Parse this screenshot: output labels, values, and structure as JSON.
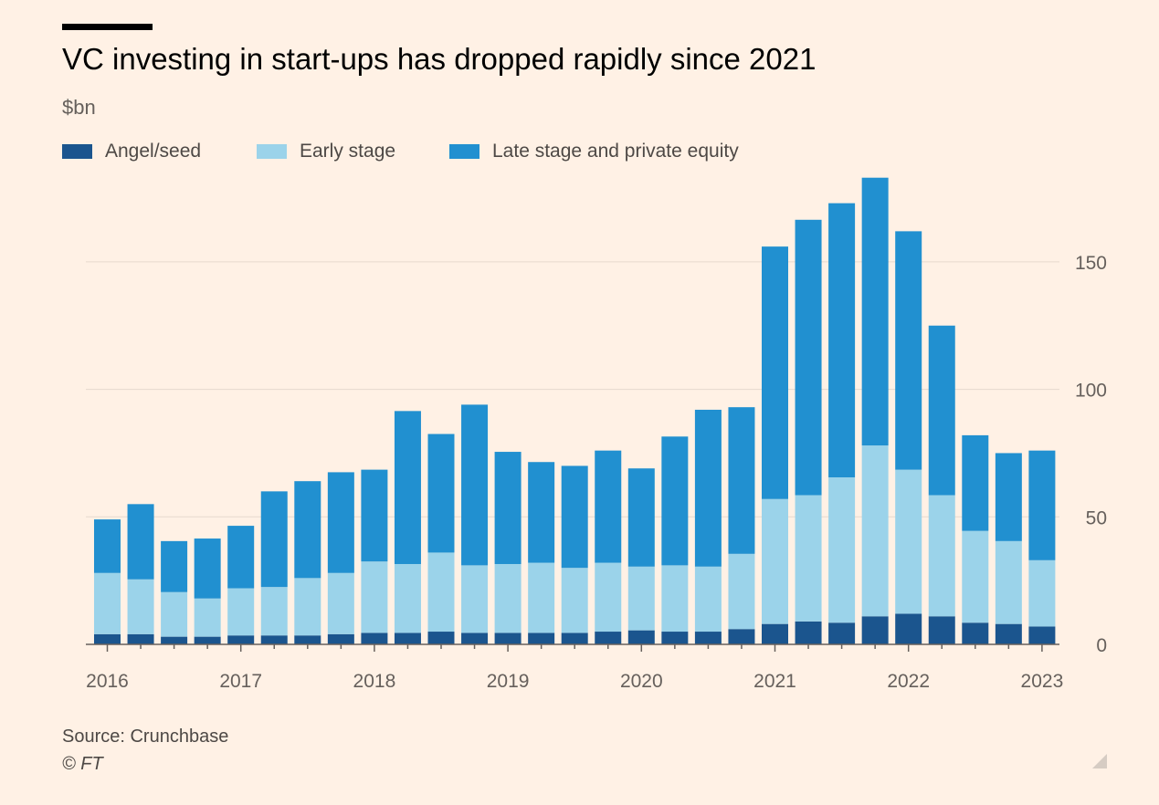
{
  "title": "VC investing in start-ups has dropped rapidly since 2021",
  "unit_label": "$bn",
  "source": "Source: Crunchbase",
  "credit": "© FT",
  "colors": {
    "background": "#fff1e5",
    "angel_seed": "#1b558e",
    "early_stage": "#9bd3ea",
    "late_stage": "#2190d0",
    "gridline": "#e6d9ce",
    "axis": "#66605c"
  },
  "chart_data": {
    "type": "bar",
    "stacked": true,
    "title": "VC investing in start-ups has dropped rapidly since 2021",
    "ylabel": "$bn",
    "ylim": [
      0,
      185
    ],
    "yticks": [
      0,
      50,
      100,
      150
    ],
    "y_axis_position": "right",
    "grid": true,
    "legend_position": "top-left",
    "categories": [
      "2016 Q1",
      "2016 Q2",
      "2016 Q3",
      "2016 Q4",
      "2017 Q1",
      "2017 Q2",
      "2017 Q3",
      "2017 Q4",
      "2018 Q1",
      "2018 Q2",
      "2018 Q3",
      "2018 Q4",
      "2019 Q1",
      "2019 Q2",
      "2019 Q3",
      "2019 Q4",
      "2020 Q1",
      "2020 Q2",
      "2020 Q3",
      "2020 Q4",
      "2021 Q1",
      "2021 Q2",
      "2021 Q3",
      "2021 Q4",
      "2022 Q1",
      "2022 Q2",
      "2022 Q3",
      "2022 Q4",
      "2023 Q1"
    ],
    "xtick_labels": [
      "2016",
      "2017",
      "2018",
      "2019",
      "2020",
      "2021",
      "2022",
      "2023"
    ],
    "series": [
      {
        "name": "Angel/seed",
        "values": [
          4,
          4,
          3,
          3,
          3.5,
          3.5,
          3.5,
          4,
          4.5,
          4.5,
          5,
          4.5,
          4.5,
          4.5,
          4.5,
          5,
          5.5,
          5,
          5,
          6,
          8,
          9,
          8.5,
          11,
          12,
          11,
          8.5,
          8,
          7
        ]
      },
      {
        "name": "Early stage",
        "values": [
          24,
          21.5,
          17.5,
          15,
          18.5,
          19,
          22.5,
          24,
          28,
          27,
          31,
          26.5,
          27,
          27.5,
          25.5,
          27,
          25,
          26,
          25.5,
          29.5,
          49,
          49.5,
          57,
          67,
          56.5,
          47.5,
          36,
          32.5,
          26
        ]
      },
      {
        "name": "Late stage and private equity",
        "values": [
          21,
          29.5,
          20,
          23.5,
          24.5,
          37.5,
          38,
          39.5,
          36,
          60,
          46.5,
          63,
          44,
          39.5,
          40,
          44,
          38.5,
          50.5,
          61.5,
          57.5,
          99,
          108,
          107.5,
          105,
          93.5,
          66.5,
          37.5,
          34.5,
          43
        ]
      }
    ]
  }
}
